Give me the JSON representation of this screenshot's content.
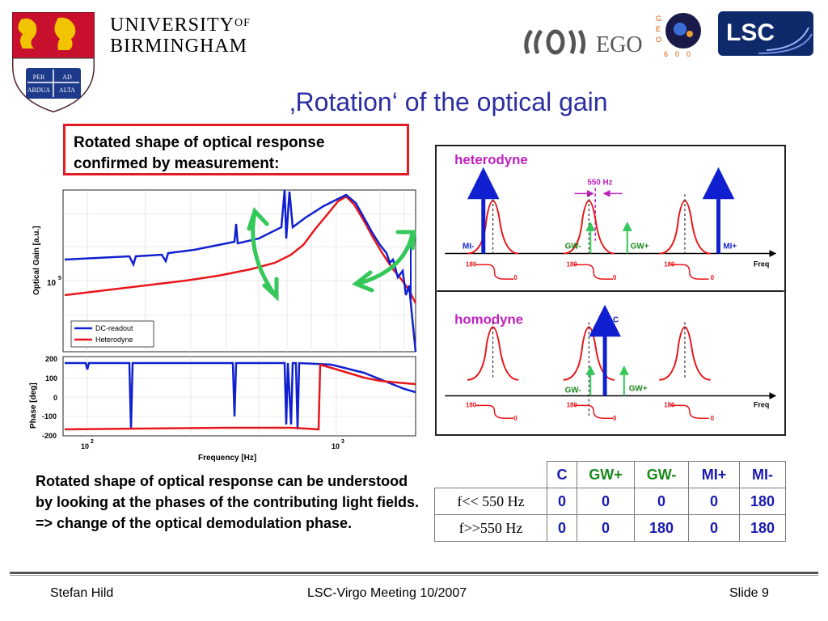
{
  "header": {
    "university_line1": "UNIVERSITY",
    "university_of": "OF",
    "university_line2": "BIRMINGHAM",
    "crest_motto_1": "PER",
    "crest_motto_2": "AD",
    "crest_motto_3": "ARDUA",
    "crest_motto_4": "ALTA",
    "ego_text": "EGO",
    "geo_letters": [
      "G",
      "E",
      "O",
      "6",
      "0",
      "0"
    ],
    "lsc_text": "LSC"
  },
  "title": "‚Rotation‘ of the optical gain",
  "callout": "Rotated shape of optical response confirmed by measurement:",
  "plot": {
    "ylabel_top": "Optical Gain [a.u.]",
    "ytick_top": "10",
    "ytick_top_exp": "5",
    "legend": [
      "DC-readout",
      "Heterodyne"
    ],
    "ylabel_bottom": "Phase [deg]",
    "yticks_bottom": [
      "200",
      "100",
      "0",
      "-100",
      "-200"
    ],
    "xticks": [
      "10",
      "10"
    ],
    "xtick_exps": [
      "2",
      "3"
    ],
    "xlabel": "Frequency [Hz]",
    "colors": {
      "dc": "#1020d0",
      "het": "#e8161b",
      "arrow": "#34c759"
    }
  },
  "diagram": {
    "heterodyne_label": "heterodyne",
    "homodyne_label": "homodyne",
    "freq_550": "550 Hz",
    "mi_minus": "MI-",
    "mi_plus": "MI+",
    "gw_minus": "GW-",
    "gw_plus": "GW+",
    "carrier": "C",
    "freq": "Freq",
    "phase_180": "180",
    "phase_0": "0"
  },
  "body_text": "Rotated shape of optical response can be understood by looking at the phases of the contributing light fields.  => change of the optical demodulation phase.",
  "table": {
    "headers": [
      "",
      "C",
      "GW+",
      "GW-",
      "MI+",
      "MI-"
    ],
    "rows": [
      {
        "label": "f<< 550 Hz",
        "values": [
          "0",
          "0",
          "0",
          "0",
          "180"
        ]
      },
      {
        "label": "f>>550 Hz",
        "values": [
          "0",
          "0",
          "180",
          "0",
          "180"
        ]
      }
    ],
    "header_colors": {
      "C": "#1a1ab0",
      "GW+": "#1a8a1a",
      "GW-": "#1a8a1a",
      "MI+": "#1a1ab0",
      "MI-": "#1a1ab0"
    }
  },
  "footer": {
    "author": "Stefan Hild",
    "meeting": "LSC-Virgo Meeting 10/2007",
    "slide": "Slide 9"
  }
}
